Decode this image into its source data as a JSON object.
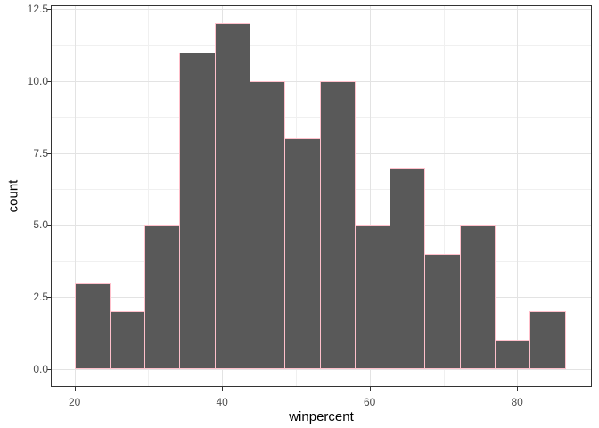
{
  "chart_data": {
    "type": "bar",
    "subtype": "histogram",
    "title": "",
    "xlabel": "winpercent",
    "ylabel": "count",
    "bin_start": 20.08,
    "bin_width": 4.75,
    "counts": [
      3,
      2,
      5,
      11,
      12,
      10,
      8,
      10,
      5,
      7,
      4,
      5,
      1,
      2
    ],
    "x_domain": [
      16.9,
      90.0
    ],
    "y_domain": [
      -0.6,
      12.6
    ],
    "x_ticks": {
      "values": [
        20,
        40,
        60,
        80
      ],
      "labels": [
        "20",
        "40",
        "60",
        "80"
      ]
    },
    "y_ticks": {
      "values": [
        0,
        2.5,
        5,
        7.5,
        10,
        12.5
      ],
      "labels": [
        "0.0",
        "2.5",
        "5.0",
        "7.5",
        "10.0",
        "12.5"
      ]
    },
    "x_minor_breaks": [
      30,
      50,
      70
    ],
    "y_minor_breaks": [
      1.25,
      3.75,
      6.25,
      8.75,
      11.25
    ],
    "grid": true,
    "legend_position": "none",
    "colors": {
      "bar_fill": "#595959",
      "bar_outline": "#ffc0cb",
      "panel_border": "#333333",
      "grid_major": "#e3e3e3",
      "grid_minor": "#f0f0f0",
      "tick_color": "#333333",
      "tick_label": "#4d4d4d",
      "axis_title": "#000000",
      "background": "#ffffff"
    }
  }
}
